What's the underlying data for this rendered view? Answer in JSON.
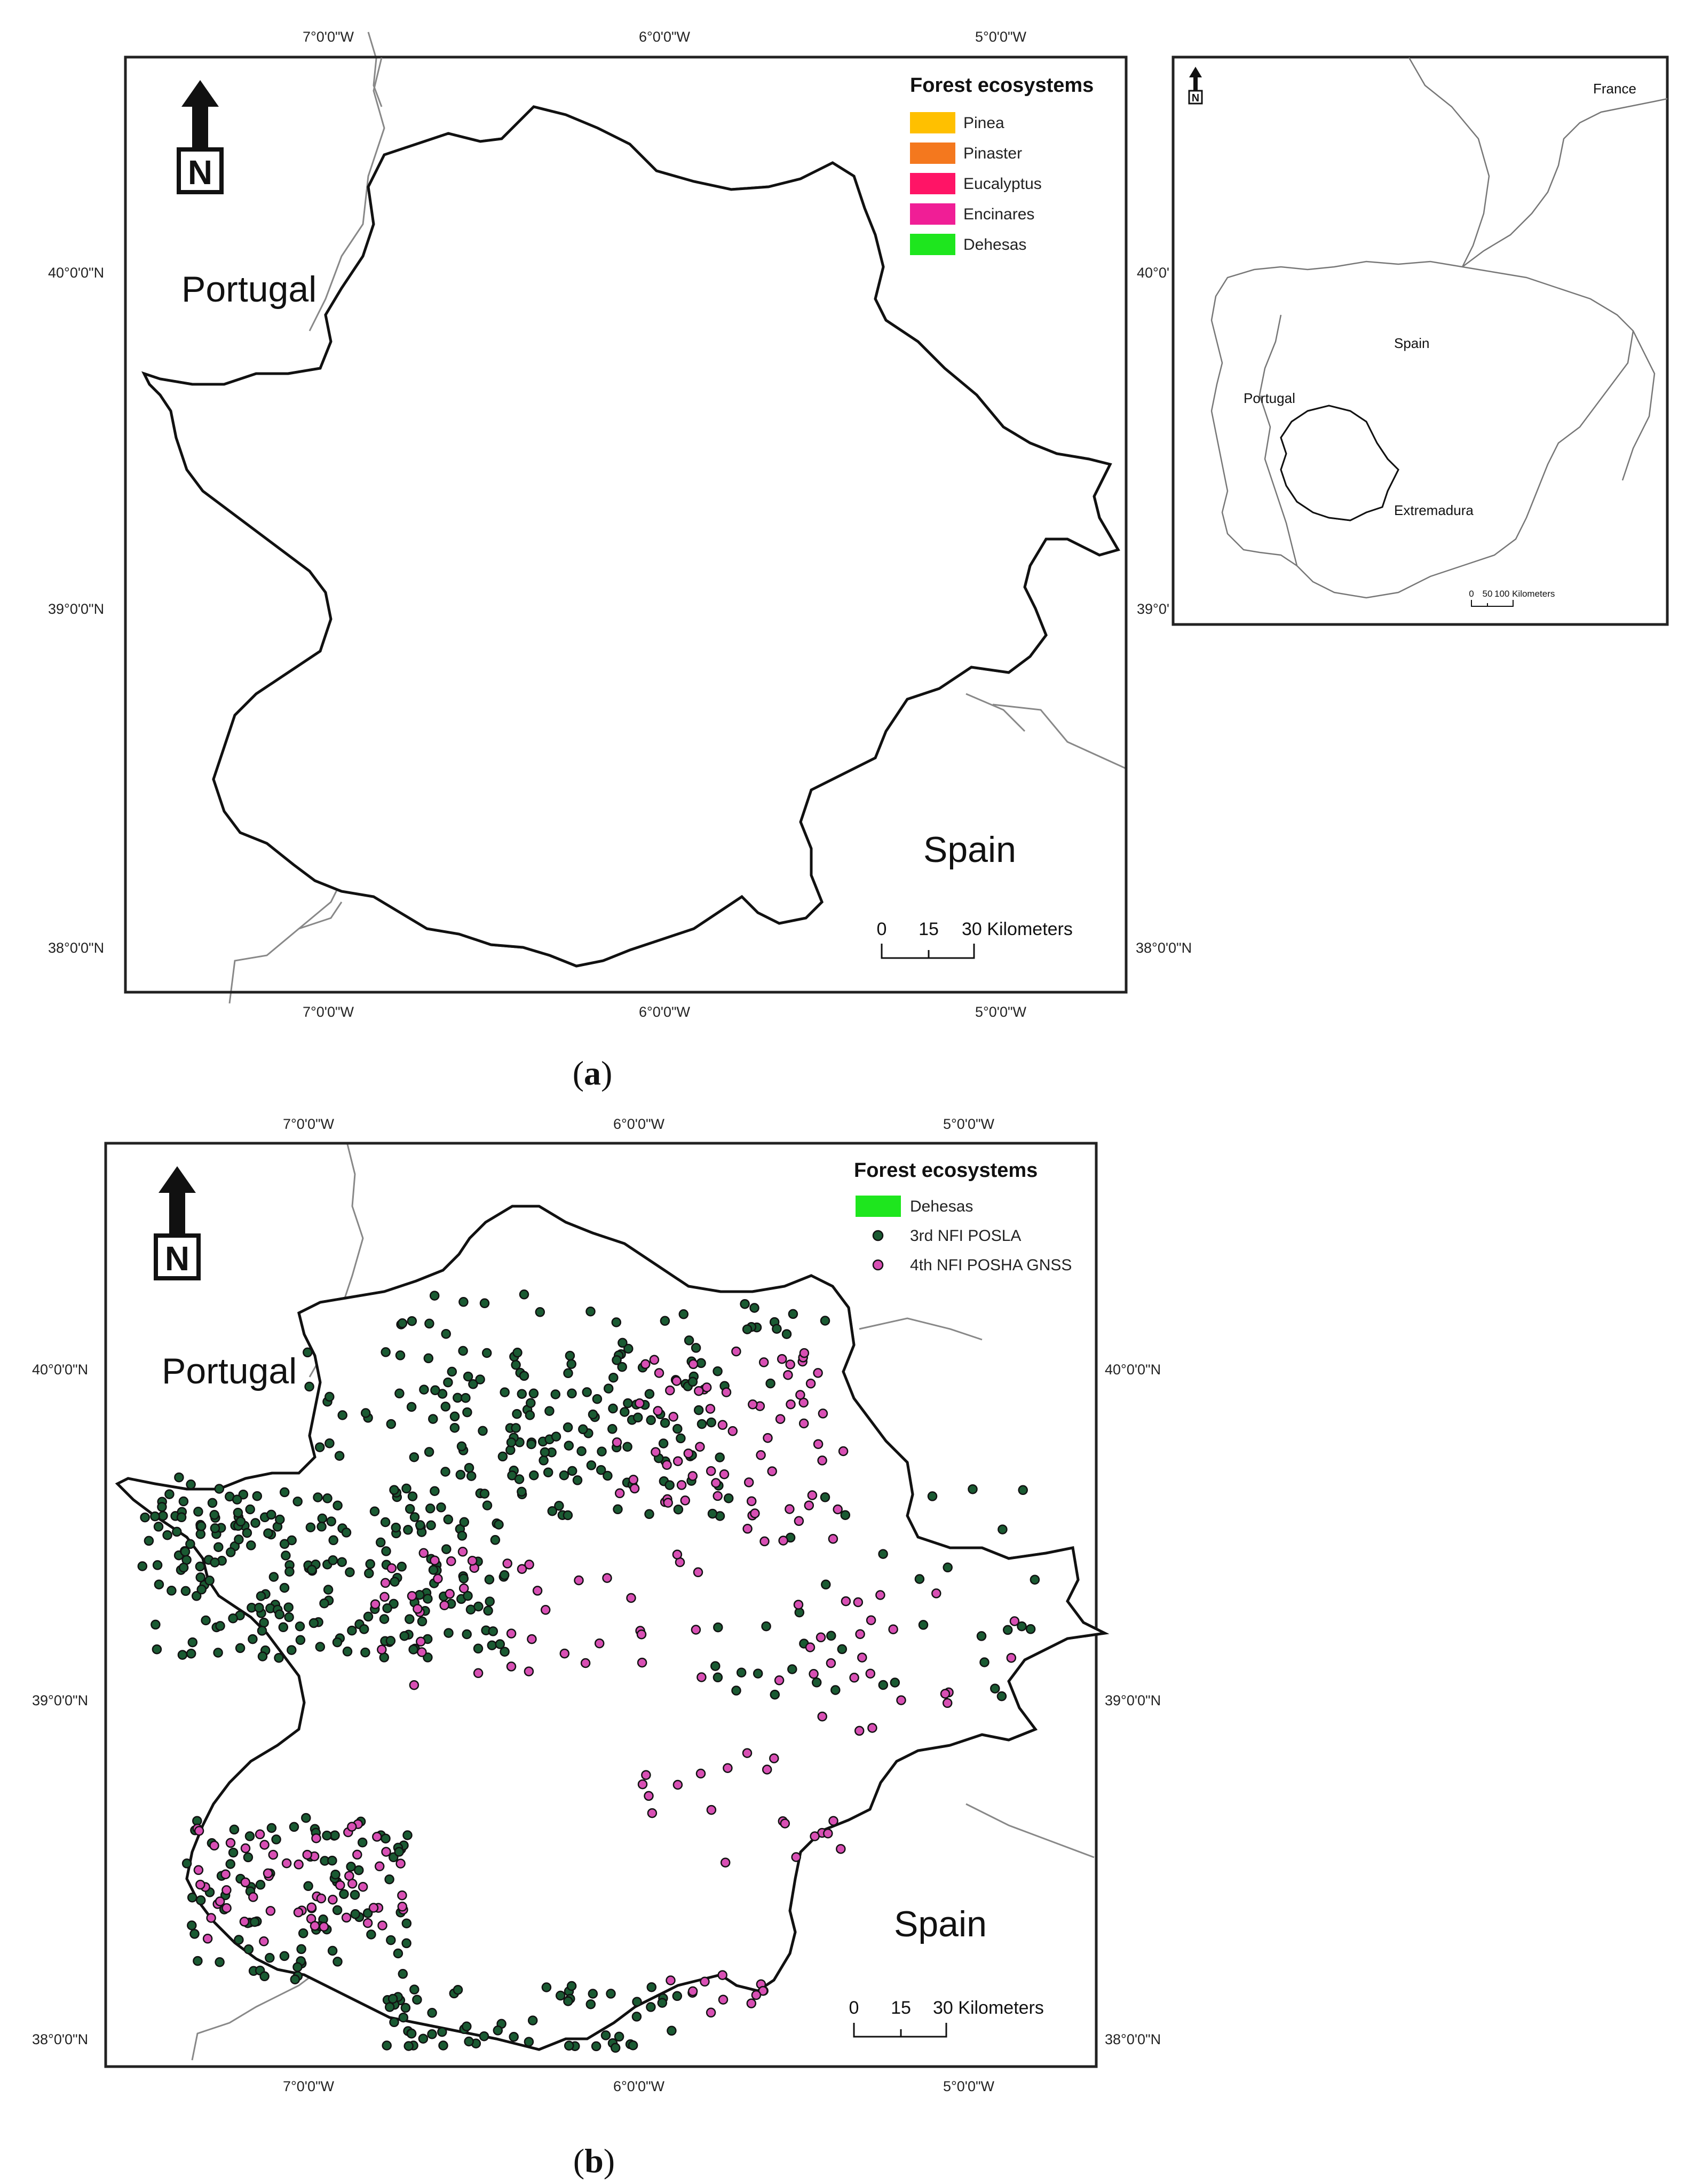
{
  "colors": {
    "pinea": "#ffc000",
    "pinaster": "#f4781e",
    "eucalyptus": "#ff1466",
    "encinares": "#f01e96",
    "dehesas": "#1ee61e",
    "posla": "#1a5a32",
    "posha": "#d84fb4",
    "border": "#111111",
    "other_border": "#888888"
  },
  "panel_a": {
    "caption_open": "(",
    "caption_letter": "a",
    "caption_close": ")",
    "lon_labels": [
      "7°0'0\"W",
      "6°0'0\"W",
      "5°0'0\"W"
    ],
    "lat_labels": [
      "40°0'0\"N",
      "39°0'0\"N",
      "38°0'0\"N"
    ],
    "legend": {
      "title": "Forest ecosystems",
      "items": [
        {
          "label": "Pinea",
          "color": "#ffc000"
        },
        {
          "label": "Pinaster",
          "color": "#f4781e"
        },
        {
          "label": "Eucalyptus",
          "color": "#ff1466"
        },
        {
          "label": "Encinares",
          "color": "#f01e96"
        },
        {
          "label": "Dehesas",
          "color": "#1ee61e"
        }
      ]
    },
    "north_letter": "N",
    "country_left": "Portugal",
    "country_right": "Spain",
    "scale": {
      "t0": "0",
      "t1": "15",
      "t2": "30 Kilometers"
    },
    "inset": {
      "france": "France",
      "spain": "Spain",
      "portugal": "Portugal",
      "region": "Extremadura",
      "north_letter": "N",
      "lat_labels": [
        "40°0'",
        "39°0'"
      ],
      "scale": {
        "t0": "0",
        "t1": "50",
        "t2": "100 Kilometers"
      }
    }
  },
  "panel_b": {
    "caption_open": "(",
    "caption_letter": "b",
    "caption_close": ")",
    "lon_labels": [
      "7°0'0\"W",
      "6°0'0\"W",
      "5°0'0\"W"
    ],
    "lat_labels": [
      "40°0'0\"N",
      "39°0'0\"N",
      "38°0'0\"N"
    ],
    "legend": {
      "title": "Forest ecosystems",
      "items": [
        {
          "label": "Dehesas",
          "color": "#1ee61e",
          "kind": "patch"
        },
        {
          "label": "3rd NFI POSLA",
          "color": "#1a5a32",
          "kind": "dot"
        },
        {
          "label": "4th NFI POSHA GNSS",
          "color": "#d84fb4",
          "kind": "dot"
        }
      ]
    },
    "north_letter": "N",
    "country_left": "Portugal",
    "country_right": "Spain",
    "scale": {
      "t0": "0",
      "t1": "15",
      "t2": "30 Kilometers"
    }
  }
}
